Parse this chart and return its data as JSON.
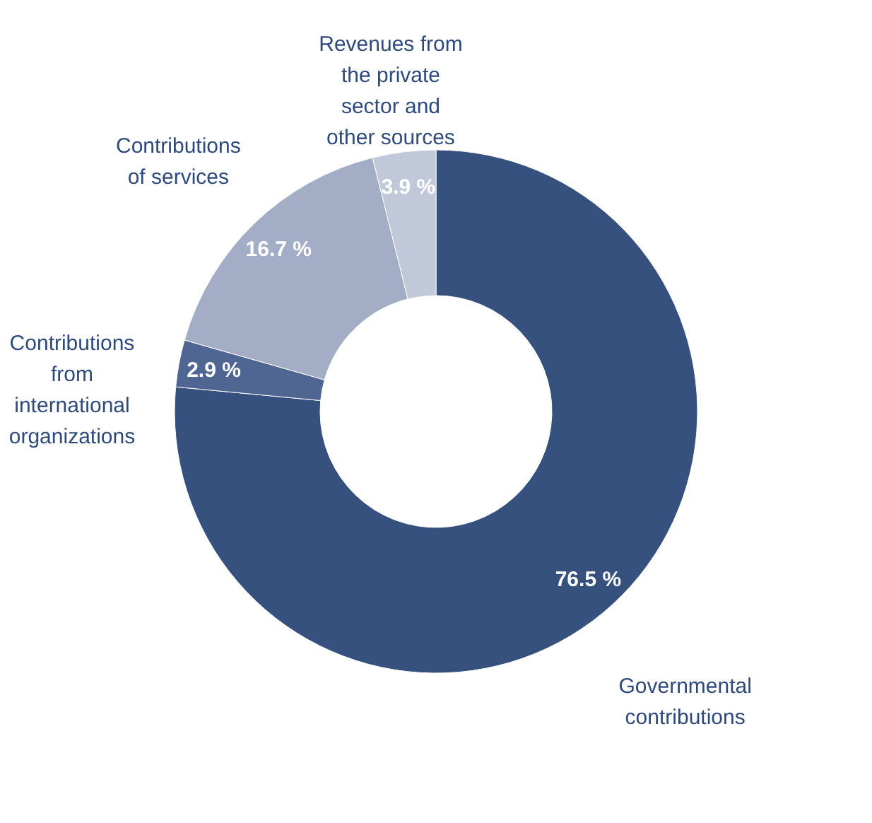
{
  "chart_data": {
    "type": "donut",
    "categories": [
      "Governmental contributions",
      "Contributions from international organizations",
      "Contributions of services",
      "Revenues from the private sector and other sources"
    ],
    "values": [
      76.5,
      2.9,
      16.7,
      3.9
    ],
    "colors": [
      "#37517e",
      "#4f6592",
      "#a3adc6",
      "#c1c8d9"
    ],
    "value_labels": [
      "76.5 %",
      "2.9 %",
      "16.7 %",
      "3.9 %"
    ],
    "legend": false
  }
}
